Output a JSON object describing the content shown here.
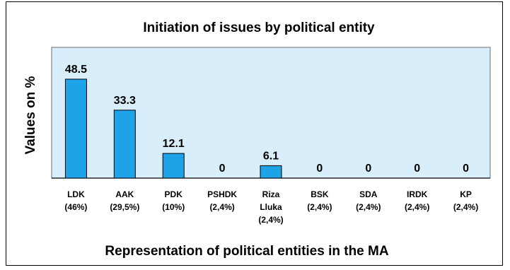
{
  "chart_data": {
    "type": "bar",
    "title": "Initiation of issues by political entity",
    "xlabel": "Representation of political entities in the MA",
    "ylabel": "Values on %",
    "ylim": [
      0,
      50
    ],
    "grid": false,
    "legend": "none",
    "categories": [
      [
        "LDK",
        "(46%)"
      ],
      [
        "AAK",
        "(29,5%)"
      ],
      [
        "PDK",
        "(10%)"
      ],
      [
        "PSHDK",
        "(2,4%)"
      ],
      [
        "Riza",
        "Lluka",
        "(2,4%)"
      ],
      [
        "BSK",
        "(2,4%)"
      ],
      [
        "SDA",
        "(2,4%)"
      ],
      [
        "IRDK",
        "(2,4%)"
      ],
      [
        "KP",
        "(2,4%)"
      ]
    ],
    "values": [
      48.5,
      33.3,
      12.1,
      0,
      6.1,
      0,
      0,
      0,
      0
    ],
    "value_labels": [
      "48.5",
      "33.3",
      "12.1",
      "0",
      "6.1",
      "0",
      "0",
      "0",
      "0"
    ],
    "colors": {
      "bar_fill": "#1fa3e8",
      "bar_stroke": "#000000",
      "plot_bg": "#d9eefb",
      "plot_border": "#6c6c6c"
    }
  }
}
